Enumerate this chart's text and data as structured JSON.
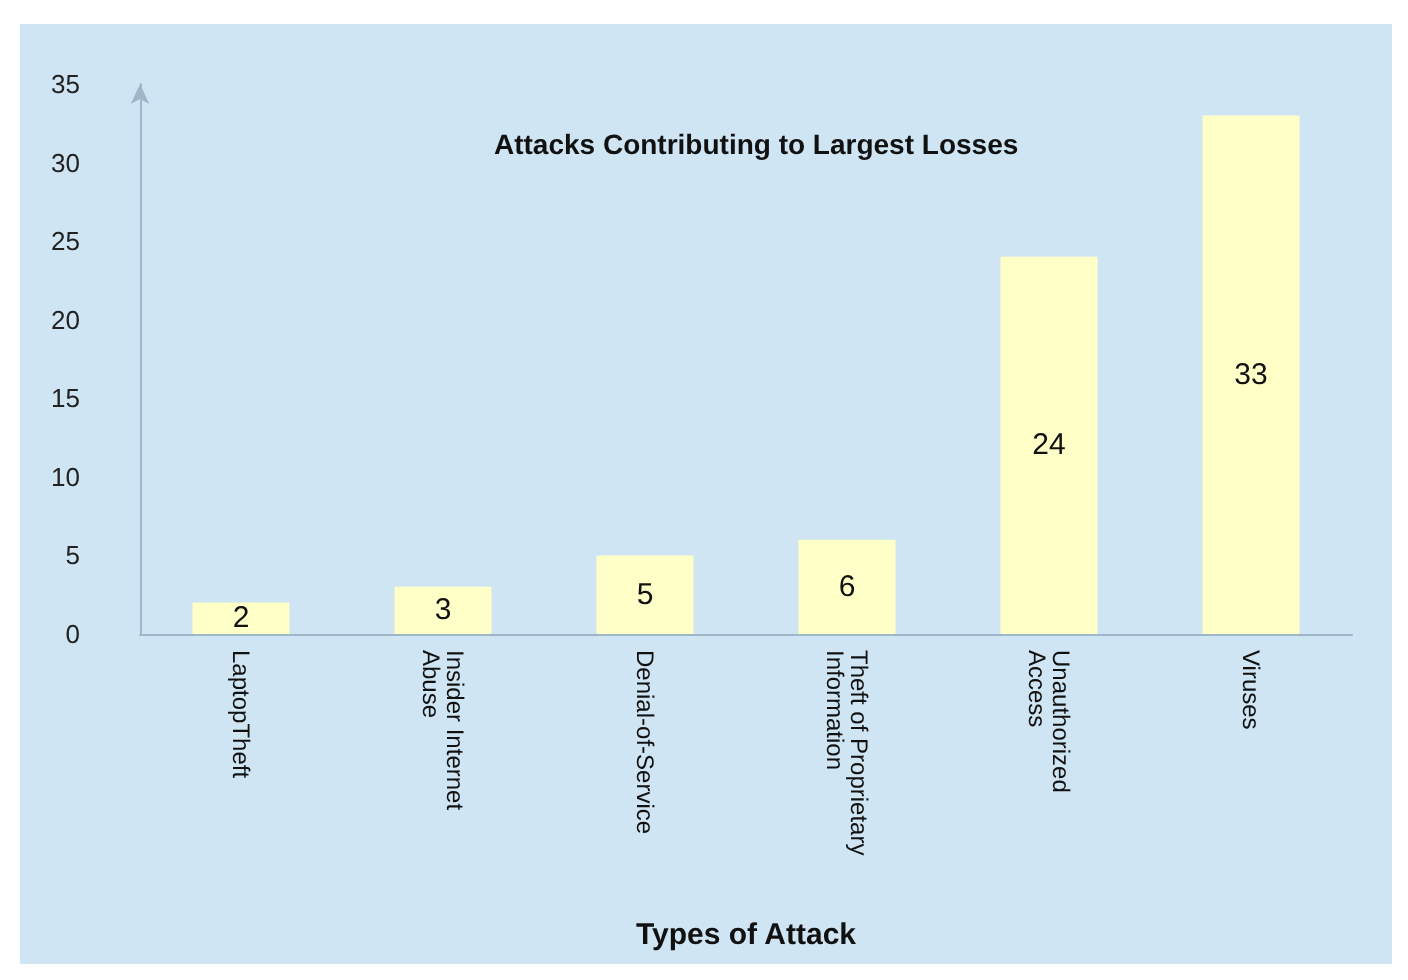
{
  "chart_data": {
    "type": "bar",
    "title": "Attacks Contributing to Largest Losses",
    "xlabel": "Types of Attack",
    "categories": [
      "LaptopTheft",
      "Insider Internet Abuse",
      "Denial-of-Service",
      "Theft of Proprietary Information",
      "Unauthorized Access",
      "Viruses"
    ],
    "values": [
      2,
      3,
      5,
      6,
      24,
      33
    ],
    "color": "#ffffc8",
    "data_labels": true,
    "ylim": [
      0,
      35
    ],
    "yticks": [
      0,
      5,
      10,
      15,
      20,
      25,
      30,
      35
    ],
    "grid": false
  }
}
